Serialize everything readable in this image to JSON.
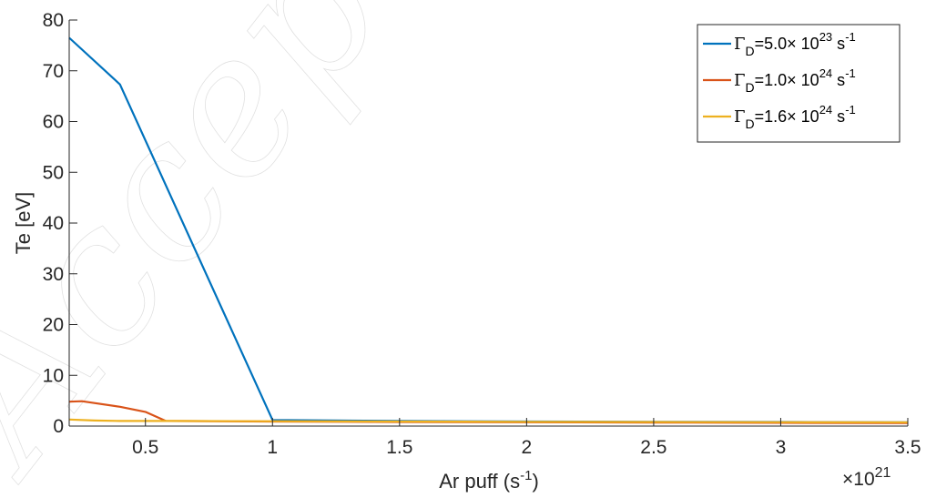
{
  "chart_data": {
    "type": "line",
    "xlabel_base": "Ar puff (s",
    "xlabel_sup": "-1",
    "xlabel_end": ")",
    "ylabel": "Te [eV]",
    "x_multiplier_prefix": "×10",
    "x_multiplier_exp": "21",
    "xlim": [
      0.2,
      3.5
    ],
    "ylim": [
      0,
      80
    ],
    "x_ticks": [
      0.5,
      1,
      1.5,
      2,
      2.5,
      3,
      3.5
    ],
    "x_tick_labels": [
      "0.5",
      "1",
      "1.5",
      "2",
      "2.5",
      "3",
      "3.5"
    ],
    "y_ticks": [
      0,
      10,
      20,
      30,
      40,
      50,
      60,
      70,
      80
    ],
    "y_tick_labels": [
      "0",
      "10",
      "20",
      "30",
      "40",
      "50",
      "60",
      "70",
      "80"
    ],
    "grid": false,
    "legend_position": "top-right",
    "series": [
      {
        "name": "Γ_D=5.0× 10^23 s^-1",
        "legend": {
          "sym": "Γ",
          "sub": "D",
          "val": "=5.0× 10",
          "exp": "23",
          "unit": " s",
          "unit_exp": "-1"
        },
        "color": "#0072BD",
        "x": [
          0.2,
          0.4,
          1.0,
          1.5,
          2.0,
          2.5,
          3.0,
          3.5
        ],
        "y": [
          76.5,
          67.3,
          1.2,
          1.0,
          0.9,
          0.85,
          0.8,
          0.75
        ]
      },
      {
        "name": "Γ_D=1.0× 10^24 s^-1",
        "legend": {
          "sym": "Γ",
          "sub": "D",
          "val": "=1.0× 10",
          "exp": "24",
          "unit": " s",
          "unit_exp": "-1"
        },
        "color": "#D95319",
        "x": [
          0.2,
          0.25,
          0.4,
          0.5,
          0.58,
          1.0,
          1.5,
          2.0,
          2.5,
          3.0,
          3.5
        ],
        "y": [
          4.8,
          4.9,
          3.8,
          2.8,
          1.0,
          0.9,
          0.8,
          0.75,
          0.7,
          0.65,
          0.6
        ]
      },
      {
        "name": "Γ_D=1.6× 10^24 s^-1",
        "legend": {
          "sym": "Γ",
          "sub": "D",
          "val": "=1.6× 10",
          "exp": "24",
          "unit": " s",
          "unit_exp": "-1"
        },
        "color": "#EDB120",
        "x": [
          0.2,
          0.3,
          0.4,
          0.5,
          0.6,
          1.0,
          1.5,
          2.0,
          2.5,
          3.0,
          3.5
        ],
        "y": [
          1.3,
          1.1,
          1.0,
          1.0,
          1.0,
          0.95,
          0.9,
          0.85,
          0.8,
          0.78,
          0.75
        ]
      }
    ]
  }
}
